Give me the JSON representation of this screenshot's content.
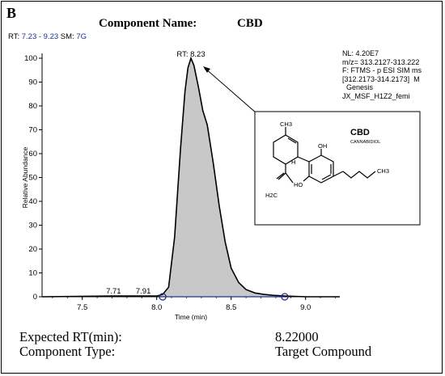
{
  "panel_label": "B",
  "component": {
    "label": "Component Name:",
    "value": "CBD"
  },
  "rt_range": {
    "label": "RT:",
    "value": "7.23 - 9.23",
    "sm_label": "SM:",
    "sm_value": "7G"
  },
  "info_lines": [
    "NL: 4.20E7",
    "m/z= 313.2127-313.222",
    "F: FTMS - p ESI SIM ms",
    "[312.2173-314.2173]  M",
    "  Genesis",
    "JX_MSF_H1Z2_femi"
  ],
  "structure": {
    "name": "CBD",
    "subname": "CANNABIDIOL",
    "labels": [
      "CH3",
      "OH",
      "H",
      "HO",
      "CH3",
      "H2C"
    ]
  },
  "footer": {
    "expected_rt_label": "Expected RT(min):",
    "expected_rt_value": "8.22000",
    "component_type_label": "Component Type:",
    "component_type_value": "Target Compound"
  },
  "colors": {
    "peak_fill": "#c8c8c8",
    "marker": "#1f2f8a"
  },
  "chart_data": {
    "type": "area",
    "xlabel": "Time (min)",
    "ylabel": "Relative Abundance",
    "xlim": [
      7.23,
      9.23
    ],
    "ylim": [
      0,
      100
    ],
    "x_ticks": [
      7.5,
      8.0,
      8.5,
      9.0
    ],
    "y_ticks": [
      0,
      10,
      20,
      30,
      40,
      50,
      60,
      70,
      80,
      90,
      100
    ],
    "x_tick_labels": [
      "7.5",
      "8.0",
      "8.5",
      "9.0"
    ],
    "y_tick_labels": [
      "0",
      "10",
      "20",
      "30",
      "40",
      "50",
      "60",
      "70",
      "80",
      "90",
      "100"
    ],
    "peak_label": "RT: 8.23",
    "minor_labels": [
      {
        "x": 7.71,
        "text": "7.71"
      },
      {
        "x": 7.91,
        "text": "7.91"
      }
    ],
    "integration_markers": [
      8.04,
      8.86
    ],
    "series": [
      {
        "x": [
          7.23,
          7.7,
          7.9,
          8.0,
          8.04,
          8.08,
          8.12,
          8.16,
          8.19,
          8.21,
          8.23,
          8.25,
          8.28,
          8.31,
          8.34,
          8.38,
          8.42,
          8.46,
          8.5,
          8.55,
          8.6,
          8.66,
          8.72,
          8.78,
          8.86,
          9.0,
          9.23
        ],
        "y": [
          0,
          0.3,
          0.3,
          0.3,
          1,
          4,
          25,
          62,
          86,
          96,
          100,
          97,
          88,
          78,
          72,
          56,
          38,
          23,
          12,
          6,
          3,
          1.6,
          1,
          0.6,
          0.3,
          0,
          0
        ]
      }
    ]
  }
}
